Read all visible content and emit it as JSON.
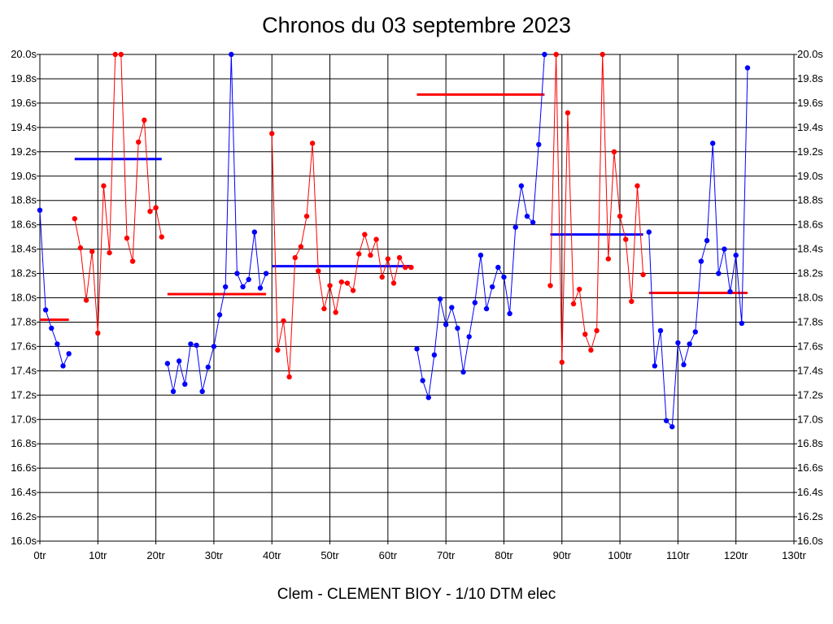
{
  "chart_data": {
    "type": "line",
    "title": "Chronos du 03 septembre 2023",
    "subtitle": "Clem - CLEMENT BIOY - 1/10 DTM elec",
    "xlim": [
      0,
      130
    ],
    "ylim": [
      16.0,
      20.0
    ],
    "x_tick_labels": [
      "0tr",
      "10tr",
      "20tr",
      "30tr",
      "40tr",
      "50tr",
      "60tr",
      "70tr",
      "80tr",
      "90tr",
      "100tr",
      "110tr",
      "120tr",
      "130tr"
    ],
    "y_tick_labels": [
      "16.0s",
      "16.2s",
      "16.4s",
      "16.6s",
      "16.8s",
      "17.0s",
      "17.2s",
      "17.4s",
      "17.6s",
      "17.8s",
      "18.0s",
      "18.2s",
      "18.4s",
      "18.6s",
      "18.8s",
      "19.0s",
      "19.2s",
      "19.4s",
      "19.6s",
      "19.8s",
      "20.0s"
    ],
    "grid": true,
    "series": [
      {
        "color": "#0000ff",
        "start_lap": 0,
        "values": [
          18.72,
          17.9,
          17.75,
          17.62,
          17.44,
          17.54
        ]
      },
      {
        "color": "#ff0000",
        "start_lap": 6,
        "values": [
          18.65,
          18.41,
          17.98,
          18.38,
          17.71,
          18.92,
          18.37,
          20.0,
          20.0,
          18.49,
          18.3,
          19.28,
          19.46,
          18.71,
          18.74,
          18.5
        ]
      },
      {
        "color": "#0000ff",
        "start_lap": 22,
        "values": [
          17.46,
          17.23,
          17.48,
          17.29,
          17.62,
          17.61,
          17.23,
          17.43,
          17.6,
          17.86,
          18.09,
          20.0,
          18.2,
          18.09,
          18.15,
          18.54,
          18.08,
          18.2
        ]
      },
      {
        "color": "#ff0000",
        "start_lap": 40,
        "values": [
          19.35,
          17.57,
          17.81,
          17.35,
          18.33,
          18.42,
          18.67,
          19.27,
          18.22,
          17.91,
          18.1,
          17.88,
          18.13,
          18.12,
          18.06,
          18.36,
          18.52,
          18.35,
          18.48,
          18.17,
          18.32,
          18.12,
          18.33,
          18.25,
          18.25
        ]
      },
      {
        "color": "#0000ff",
        "start_lap": 65,
        "values": [
          17.58,
          17.32,
          17.18,
          17.53,
          17.99,
          17.78,
          17.92,
          17.75,
          17.39,
          17.68,
          17.96,
          18.35,
          17.91,
          18.09,
          18.25,
          18.17,
          17.87,
          18.58,
          18.92,
          18.67,
          18.62,
          19.26,
          20.0
        ]
      },
      {
        "color": "#ff0000",
        "start_lap": 88,
        "values": [
          18.1,
          20.0,
          17.47,
          19.52,
          17.95,
          18.07,
          17.7,
          17.57,
          17.73,
          20.0,
          18.32,
          19.2,
          18.67,
          18.48,
          17.97,
          18.92,
          18.19
        ]
      },
      {
        "color": "#0000ff",
        "start_lap": 105,
        "values": [
          18.54,
          17.44,
          17.73,
          16.99,
          16.94,
          17.63,
          17.45,
          17.62,
          17.72,
          18.3,
          18.47,
          19.27,
          18.2,
          18.4,
          18.05,
          18.35,
          17.79,
          19.89
        ]
      }
    ],
    "average_lines": [
      {
        "color": "#ff0000",
        "x_start": 0,
        "x_end": 5,
        "value": 17.82
      },
      {
        "color": "#0000ff",
        "x_start": 6,
        "x_end": 21,
        "value": 19.14
      },
      {
        "color": "#ff0000",
        "x_start": 22,
        "x_end": 39,
        "value": 18.03
      },
      {
        "color": "#0000ff",
        "x_start": 40,
        "x_end": 64,
        "value": 18.26
      },
      {
        "color": "#ff0000",
        "x_start": 65,
        "x_end": 87,
        "value": 19.67
      },
      {
        "color": "#0000ff",
        "x_start": 88,
        "x_end": 104,
        "value": 18.52
      },
      {
        "color": "#ff0000",
        "x_start": 105,
        "x_end": 122,
        "value": 18.04
      }
    ]
  }
}
